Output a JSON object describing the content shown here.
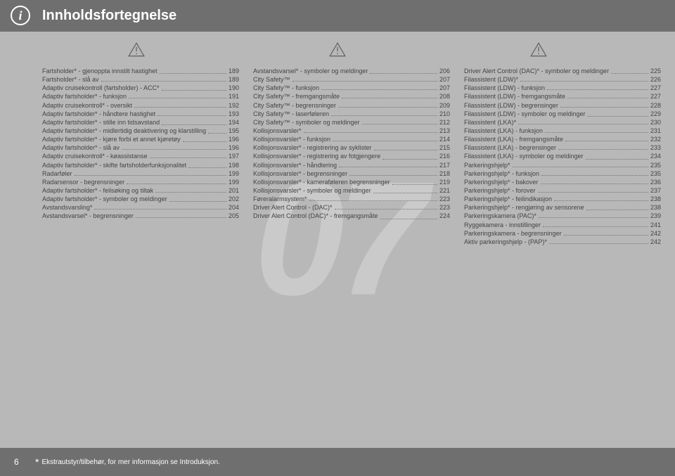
{
  "header": {
    "title": "Innholdsfortegnelse"
  },
  "watermark": "07",
  "footer": {
    "page_number": "6",
    "note": "Ekstrautstyr/tilbehør, for mer informasjon se Introduksjon."
  },
  "col1": [
    {
      "label": "Fartsholder* - gjenoppta innstilt hastighet",
      "pg": "189",
      "wrap": true
    },
    {
      "label": "Fartsholder* - slå av",
      "pg": "189"
    },
    {
      "label": "Adaptiv cruisekontroll (fartsholder) - ACC*",
      "pg": "190",
      "wrap": true
    },
    {
      "label": "Adaptiv fartsholder* - funksjon",
      "pg": "191"
    },
    {
      "label": "Adaptiv cruisekontroll* - oversikt",
      "pg": "192"
    },
    {
      "label": "Adaptiv fartsholder* - håndtere hastighet",
      "pg": "193"
    },
    {
      "label": "Adaptiv fartsholder* - stille inn tidsavstand",
      "pg": "194",
      "wrap": true
    },
    {
      "label": "Adaptiv fartsholder* - midlertidig deaktivering og klarstilling",
      "pg": "195",
      "wrap": true
    },
    {
      "label": "Adaptiv fartsholder* - kjøre forbi et annet kjøretøy",
      "pg": "196",
      "wrap": true
    },
    {
      "label": "Adaptiv fartsholder* - slå av",
      "pg": "196"
    },
    {
      "label": "Adaptiv cruisekontroll* - køassistanse",
      "pg": "197"
    },
    {
      "label": "Adaptiv fartsholder* - skifte fartsholderfunksjonalitet",
      "pg": "198",
      "wrap": true
    },
    {
      "label": "Radarføler",
      "pg": "199"
    },
    {
      "label": "Radarsensor - begrensninger",
      "pg": "199"
    },
    {
      "label": "Adaptiv fartsholder* - feilsøking og tiltak",
      "pg": "201"
    },
    {
      "label": "Adaptiv fartsholder* - symboler og meldinger",
      "pg": "202",
      "wrap": true
    },
    {
      "label": "Avstandsvarsling*",
      "pg": "204"
    },
    {
      "label": "Avstandsvarsel* - begrensninger",
      "pg": "205"
    }
  ],
  "col2": [
    {
      "label": "Avstandsvarsel* - symboler og meldinger",
      "pg": "206",
      "wrap": true
    },
    {
      "label": "City Safety™",
      "pg": "207"
    },
    {
      "label": "City Safety™ - funksjon",
      "pg": "207"
    },
    {
      "label": "City Safety™ - fremgangsmåte",
      "pg": "208"
    },
    {
      "label": "City Safety™ - begrensninger",
      "pg": "209"
    },
    {
      "label": "City Safety™ - laserføleren",
      "pg": "210"
    },
    {
      "label": "City Safety™ - symboler og meldinger",
      "pg": "212"
    },
    {
      "label": "Kollisjonsvarsler*",
      "pg": "213"
    },
    {
      "label": "Kollisjonsvarsler* - funksjon",
      "pg": "214"
    },
    {
      "label": "Kollisjonsvarsler* - registrering av syklister",
      "pg": "215",
      "wrap": true
    },
    {
      "label": "Kollisjonsvarsler* - registrering av fotgjengere",
      "pg": "216",
      "wrap": true
    },
    {
      "label": "Kollisjonsvarsler* - håndtering",
      "pg": "217"
    },
    {
      "label": "Kollisjonsvarsler* - begrensninger",
      "pg": "218"
    },
    {
      "label": "Kollisjonsvarsler* - kameraføleren begrensninger",
      "pg": "219",
      "wrap": true
    },
    {
      "label": "Kollisjonsvarsler* - symboler og meldinger",
      "pg": "221",
      "wrap": true
    },
    {
      "label": "Føreralarmsystem*",
      "pg": "223"
    },
    {
      "label": "Driver Alert Control - (DAC)*",
      "pg": "223"
    },
    {
      "label": "Driver Alert Control (DAC)* - fremgangsmåte",
      "pg": "224",
      "wrap": true
    }
  ],
  "col3": [
    {
      "label": "Driver Alert Control (DAC)* - symboler og meldinger",
      "pg": "225",
      "wrap": true
    },
    {
      "label": "Filassistent (LDW)*",
      "pg": "226"
    },
    {
      "label": "Filassistent (LDW) - funksjon",
      "pg": "227"
    },
    {
      "label": "Filassistent (LDW) - fremgangsmåte",
      "pg": "227"
    },
    {
      "label": "Filassistent (LDW) - begrensinger",
      "pg": "228"
    },
    {
      "label": "Filassistent (LDW) - symboler og meldinger",
      "pg": "229",
      "wrap": true
    },
    {
      "label": "Filassistent (LKA)*",
      "pg": "230"
    },
    {
      "label": "Filassistent (LKA) - funksjon",
      "pg": "231"
    },
    {
      "label": "Filassistent (LKA) - fremgangsmåte",
      "pg": "232"
    },
    {
      "label": "Filassistent (LKA) - begrensinger",
      "pg": "233"
    },
    {
      "label": "Filassistent (LKA) - symboler og meldinger",
      "pg": "234",
      "wrap": true
    },
    {
      "label": "Parkeringshjelp*",
      "pg": "235"
    },
    {
      "label": "Parkeringshjelp* - funksjon",
      "pg": "235"
    },
    {
      "label": "Parkeringshjelp* - bakover",
      "pg": "236"
    },
    {
      "label": "Parkeringshjelp* - forover",
      "pg": "237"
    },
    {
      "label": "Parkeringshjelp* - feilindikasjon",
      "pg": "238"
    },
    {
      "label": "Parkeringshjelp* - rengjøring av sensorene",
      "pg": "238",
      "wrap": true
    },
    {
      "label": "Parkeringskamera (PAC)*",
      "pg": "239"
    },
    {
      "label": "Ryggekamera - innstillinger",
      "pg": "241"
    },
    {
      "label": "Parkeringskamera - begrensninger",
      "pg": "242"
    },
    {
      "label": "Aktiv parkeringshjelp - (PAP)*",
      "pg": "242"
    }
  ]
}
